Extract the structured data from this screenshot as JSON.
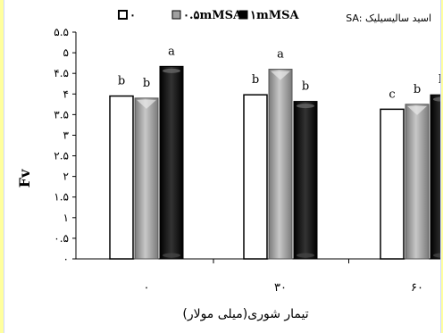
{
  "chart_data": {
    "type": "bar",
    "categories": [
      "۰",
      "۳۰",
      "۶۰"
    ],
    "series": [
      {
        "name": "۰",
        "values": [
          3.95,
          3.98,
          3.63
        ]
      },
      {
        "name": "۰.۵mMSA",
        "values": [
          3.9,
          4.6,
          3.75
        ]
      },
      {
        "name": "۱mMSA",
        "values": [
          4.67,
          3.82,
          3.98
        ]
      }
    ],
    "annotations": [
      [
        "b",
        "b",
        "c"
      ],
      [
        "b",
        "a",
        "b"
      ],
      [
        "a",
        "b",
        "b"
      ]
    ],
    "ylim": [
      0,
      5.5
    ],
    "yticks": [
      "۰",
      "۰.۵",
      "۱",
      "۱.۵",
      "۲",
      "۲.۵",
      "۳",
      "۳.۵",
      "۴",
      "۴.۵",
      "۵",
      "۵.۵"
    ],
    "ylabel": "Fv",
    "xlabel": "تیمار شوری(میلی مولار)",
    "legend_note": "SA: اسید سالیسیلیک",
    "legend_position": "top",
    "colors": [
      "#ffffff",
      "#a0a0a0",
      "#000000"
    ]
  }
}
